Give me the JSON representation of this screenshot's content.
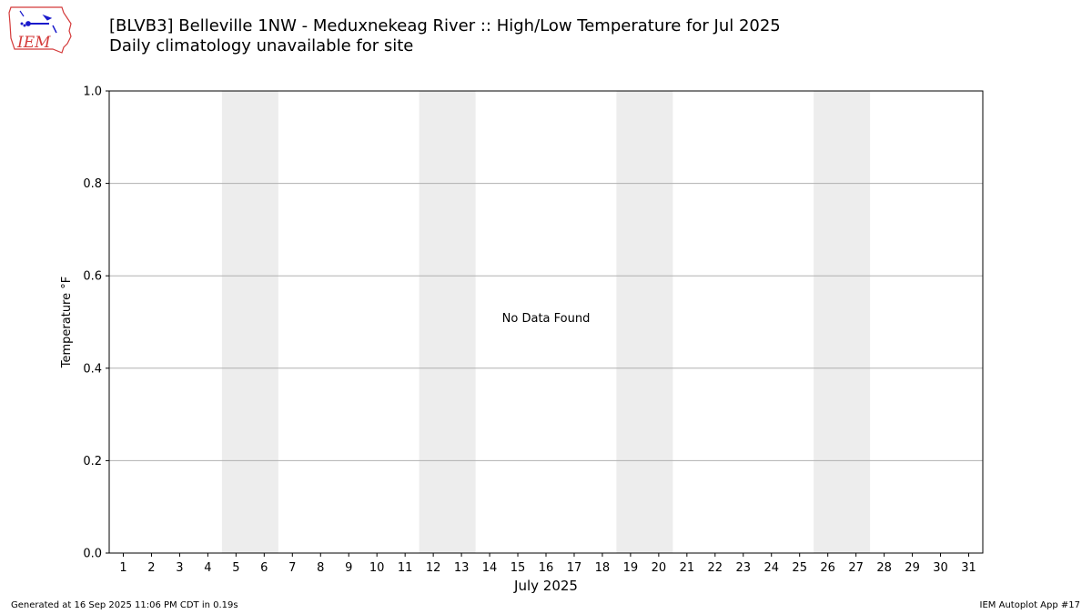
{
  "logo": {
    "text": "IEM"
  },
  "header": {
    "title": "[BLVB3] Belleville 1NW - Meduxnekeag River :: High/Low Temperature for Jul 2025",
    "subtitle": "Daily climatology unavailable for site"
  },
  "chart_data": {
    "type": "bar",
    "xlabel": "July 2025",
    "ylabel": "Temperature °F",
    "categories": [
      "1",
      "2",
      "3",
      "4",
      "5",
      "6",
      "7",
      "8",
      "9",
      "10",
      "11",
      "12",
      "13",
      "14",
      "15",
      "16",
      "17",
      "18",
      "19",
      "20",
      "21",
      "22",
      "23",
      "24",
      "25",
      "26",
      "27",
      "28",
      "29",
      "30",
      "31"
    ],
    "xlim": [
      0.5,
      31.5
    ],
    "ylim": [
      0,
      1
    ],
    "yticks": [
      "0.0",
      "0.2",
      "0.4",
      "0.6",
      "0.8",
      "1.0"
    ],
    "grid": "horizontal",
    "weekend_shading": [
      [
        5,
        6
      ],
      [
        12,
        13
      ],
      [
        19,
        20
      ],
      [
        26,
        27
      ]
    ],
    "shading_color": "#ededed",
    "series": [],
    "annotation": "No Data Found"
  },
  "footer": {
    "generated": "Generated at 16 Sep 2025 11:06 PM CDT in 0.19s",
    "app": "IEM Autoplot App #17"
  }
}
